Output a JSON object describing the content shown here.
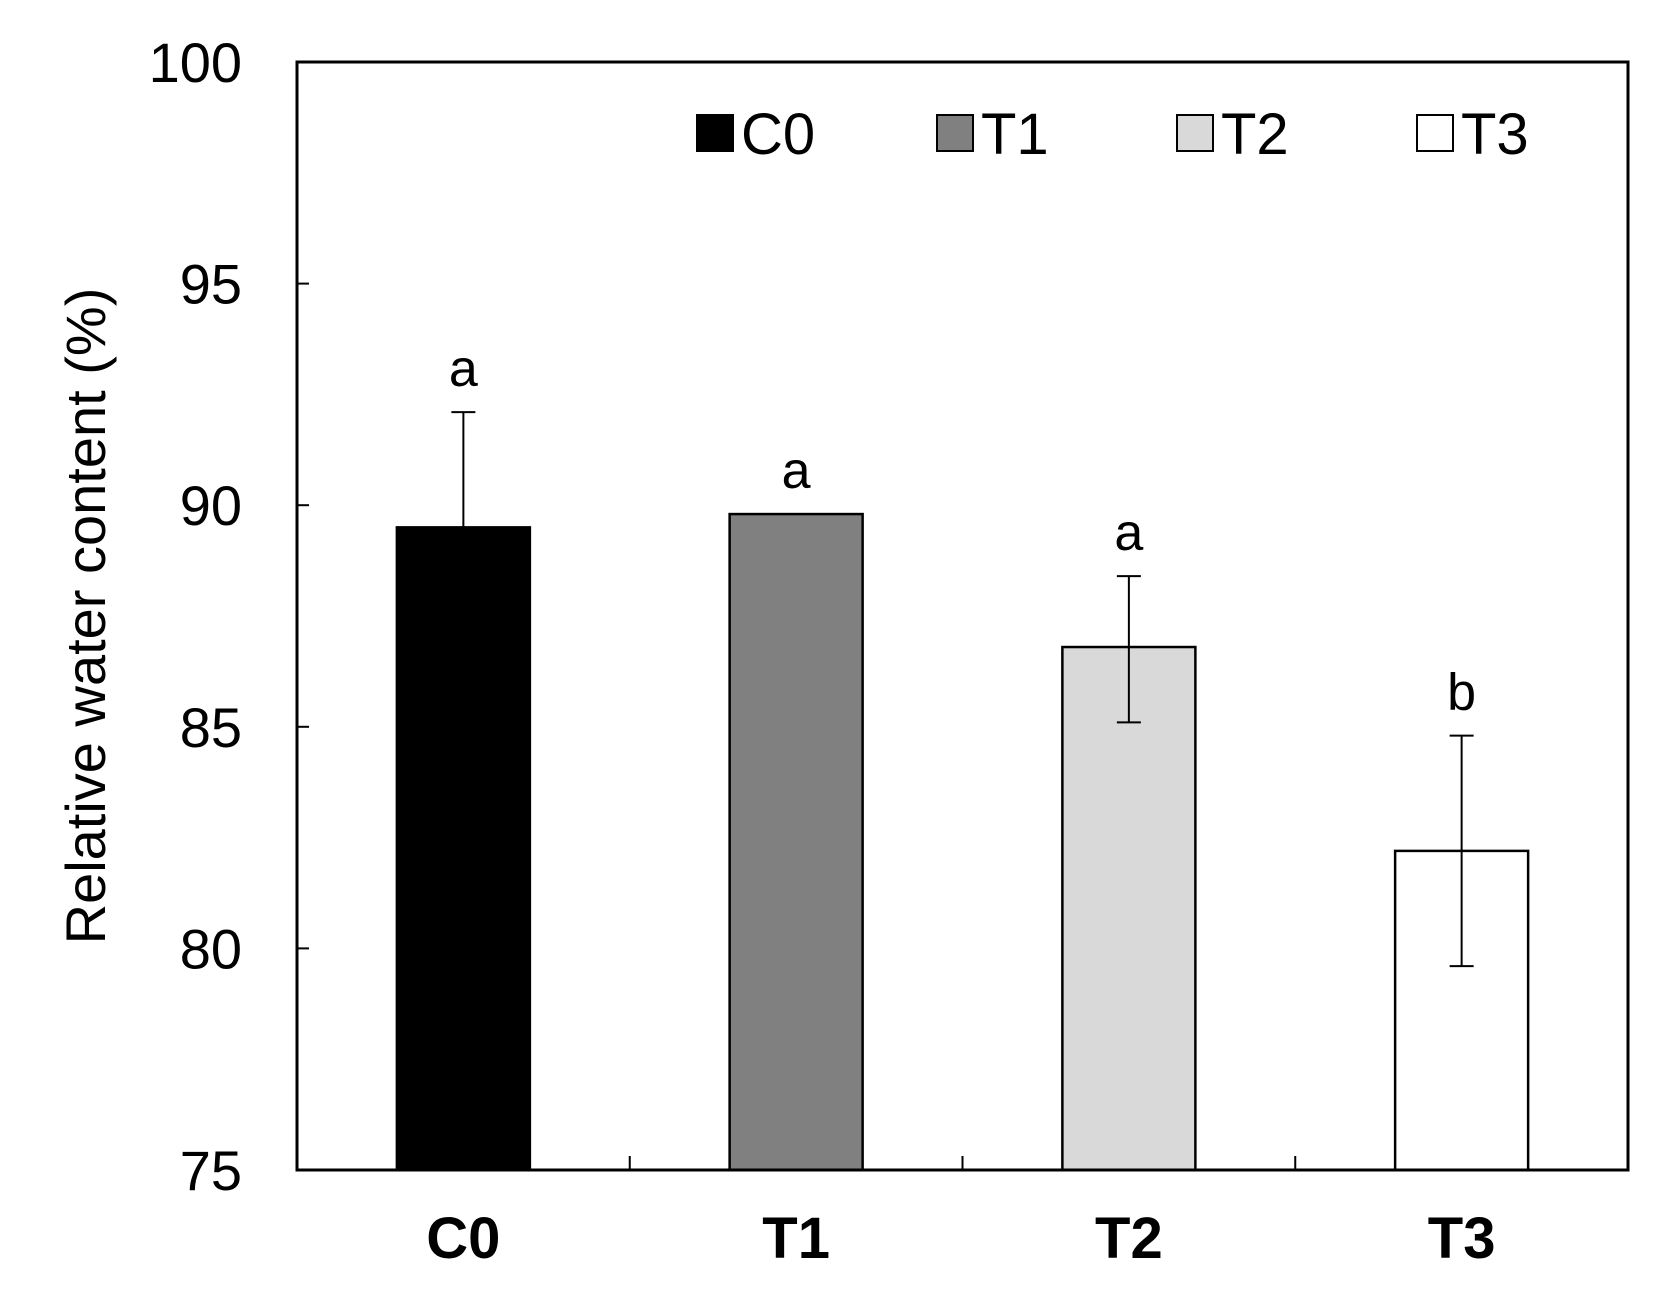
{
  "chart_data": {
    "type": "bar",
    "title": "",
    "xlabel": "",
    "ylabel": "Relative water content (%)",
    "ylim": [
      75,
      100
    ],
    "yticks": [
      75,
      80,
      85,
      90,
      95,
      100
    ],
    "categories": [
      "C0",
      "T1",
      "T2",
      "T3"
    ],
    "values": [
      89.5,
      89.8,
      86.8,
      82.2
    ],
    "errors_upper": [
      92.1,
      89.8,
      88.4,
      84.8
    ],
    "errors_lower": [
      89.5,
      89.8,
      85.1,
      79.6
    ],
    "significance": [
      "a",
      "a",
      "a",
      "b"
    ],
    "colors": [
      "#000000",
      "#808080",
      "#d9d9d9",
      "#ffffff"
    ],
    "legend": {
      "position": "top-right",
      "entries": [
        "C0",
        "T1",
        "T2",
        "T3"
      ]
    },
    "grid": false
  }
}
